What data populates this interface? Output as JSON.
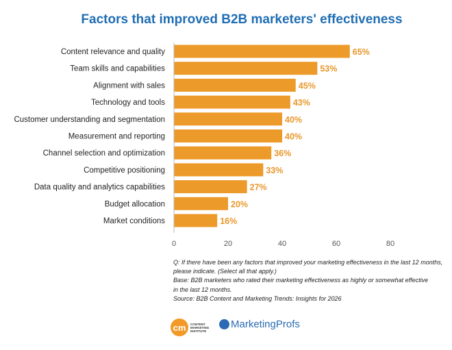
{
  "chart_data": {
    "type": "bar",
    "orientation": "horizontal",
    "title": "Factors that improved B2B marketers' effectiveness",
    "categories": [
      "Content relevance and quality",
      "Team skills and capabilities",
      "Alignment with sales",
      "Technology and tools",
      "Customer understanding and segmentation",
      "Measurement and reporting",
      "Channel selection and optimization",
      "Competitive positioning",
      "Data quality and analytics capabilities",
      "Budget allocation",
      "Market conditions"
    ],
    "values": [
      65,
      53,
      45,
      43,
      40,
      40,
      36,
      33,
      27,
      20,
      16
    ],
    "data_labels": [
      "65%",
      "53%",
      "45%",
      "43%",
      "40%",
      "40%",
      "36%",
      "33%",
      "27%",
      "20%",
      "16%"
    ],
    "xlim": [
      0,
      80
    ],
    "xticks": [
      "0",
      "20",
      "40",
      "60",
      "80"
    ],
    "grid": false,
    "bar_color": "#ec9a29",
    "label_color": "#e8962a",
    "title_color": "#1f6db3"
  },
  "notes": [
    "Q: If there have been any factors that improved your marketing effectiveness in the last 12 months,",
    "please indicate. (Select all that apply.)",
    "Base: B2B marketers who rated their marketing effectiveness as highly or somewhat effective",
    "in the last 12 months.",
    "Source: B2B Content and Marketing Trends: Insights for 2026"
  ],
  "logos": {
    "cmi_mark": "cm",
    "cmi_text": "CONTENT MARKETING INSTITUTE",
    "mp_text": "MarketingProfs"
  }
}
